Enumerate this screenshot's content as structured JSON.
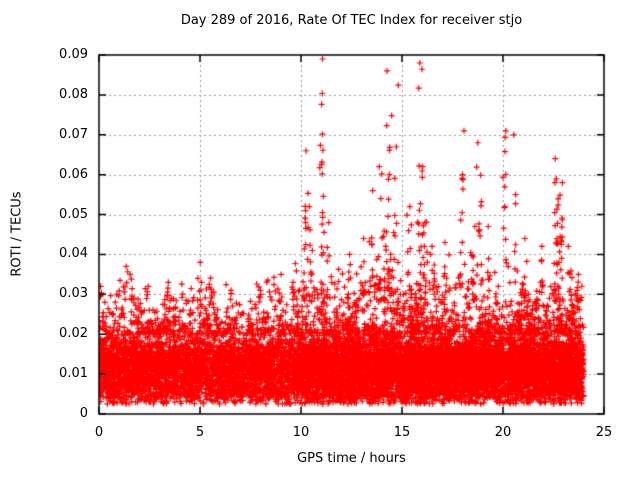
{
  "chart_data": {
    "type": "scatter",
    "title": "Day 289 of 2016, Rate Of TEC Index for receiver stjo",
    "xlabel": "GPS time / hours",
    "ylabel": "ROTI / TECUs",
    "xlim": [
      0,
      25
    ],
    "ylim": [
      0,
      0.09
    ],
    "xticks": [
      0,
      5,
      10,
      15,
      20,
      25
    ],
    "x_tick_labels": [
      "0",
      "5",
      "10",
      "15",
      "20",
      "25"
    ],
    "yticks": [
      0,
      0.01,
      0.02,
      0.03,
      0.04,
      0.05,
      0.06,
      0.07,
      0.08,
      0.09
    ],
    "y_tick_labels": [
      "0",
      "0.01",
      "0.02",
      "0.03",
      "0.04",
      "0.05",
      "0.06",
      "0.07",
      "0.08",
      "0.09"
    ],
    "grid": true,
    "legend": "none",
    "marker": "plus",
    "marker_color": "#ff0000",
    "grid_color": "#989898",
    "frame_color": "#000000",
    "background_color": "#ffffff",
    "data_extent_hours": [
      0,
      24
    ],
    "point_cloud_model": {
      "seed": 289,
      "n_points_uniform": 10500,
      "n_points_extra_10_24h": 2200,
      "t_range_hours": [
        0,
        24
      ],
      "core_center": 0.012,
      "core_sigma": 0.0042,
      "core_range": [
        0.004,
        0.024
      ],
      "low_tail_range": [
        0.0025,
        0.007
      ],
      "low_tail_prob": 0.08,
      "upper_tail_prob": 0.1,
      "band_top_by_hour": [
        0.031,
        0.037,
        0.029,
        0.031,
        0.03,
        0.037,
        0.029,
        0.03,
        0.031,
        0.034,
        0.035,
        0.036,
        0.034,
        0.037,
        0.039,
        0.038,
        0.036,
        0.038,
        0.04,
        0.036,
        0.034,
        0.033,
        0.036,
        0.034
      ]
    },
    "spikes": [
      {
        "t": 0.05,
        "ymax": 0.032,
        "n": 5,
        "spread": 0.05
      },
      {
        "t": 1.3,
        "ymax": 0.037,
        "n": 7,
        "spread": 0.08
      },
      {
        "t": 1.6,
        "ymax": 0.035,
        "n": 5,
        "spread": 0.06
      },
      {
        "t": 2.4,
        "ymax": 0.032,
        "n": 4,
        "spread": 0.06
      },
      {
        "t": 3.4,
        "ymax": 0.033,
        "n": 5,
        "spread": 0.06
      },
      {
        "t": 5.0,
        "ymax": 0.038,
        "n": 6,
        "spread": 0.06
      },
      {
        "t": 6.5,
        "ymax": 0.031,
        "n": 4,
        "spread": 0.06
      },
      {
        "t": 8.0,
        "ymax": 0.031,
        "n": 4,
        "spread": 0.06
      },
      {
        "t": 9.0,
        "ymax": 0.035,
        "n": 5,
        "spread": 0.06
      },
      {
        "t": 9.6,
        "ymax": 0.033,
        "n": 4,
        "spread": 0.05
      },
      {
        "t": 10.2,
        "ymax": 0.066,
        "n": 14,
        "spread": 0.08
      },
      {
        "t": 10.45,
        "ymax": 0.052,
        "n": 8,
        "spread": 0.06
      },
      {
        "t": 11.05,
        "ymax": 0.089,
        "n": 22,
        "spread": 0.05
      },
      {
        "t": 11.35,
        "ymax": 0.048,
        "n": 8,
        "spread": 0.06
      },
      {
        "t": 12.4,
        "ymax": 0.04,
        "n": 6,
        "spread": 0.06
      },
      {
        "t": 13.1,
        "ymax": 0.044,
        "n": 8,
        "spread": 0.07
      },
      {
        "t": 13.55,
        "ymax": 0.056,
        "n": 10,
        "spread": 0.07
      },
      {
        "t": 13.95,
        "ymax": 0.062,
        "n": 12,
        "spread": 0.08
      },
      {
        "t": 14.35,
        "ymax": 0.086,
        "n": 24,
        "spread": 0.12
      },
      {
        "t": 14.65,
        "ymax": 0.067,
        "n": 10,
        "spread": 0.07
      },
      {
        "t": 15.35,
        "ymax": 0.052,
        "n": 8,
        "spread": 0.06
      },
      {
        "t": 15.9,
        "ymax": 0.088,
        "n": 18,
        "spread": 0.07
      },
      {
        "t": 16.15,
        "ymax": 0.062,
        "n": 10,
        "spread": 0.06
      },
      {
        "t": 16.6,
        "ymax": 0.042,
        "n": 6,
        "spread": 0.06
      },
      {
        "t": 17.15,
        "ymax": 0.043,
        "n": 8,
        "spread": 0.06
      },
      {
        "t": 17.95,
        "ymax": 0.071,
        "n": 10,
        "spread": 0.06
      },
      {
        "t": 18.5,
        "ymax": 0.047,
        "n": 8,
        "spread": 0.07
      },
      {
        "t": 18.85,
        "ymax": 0.068,
        "n": 12,
        "spread": 0.07
      },
      {
        "t": 19.3,
        "ymax": 0.047,
        "n": 6,
        "spread": 0.06
      },
      {
        "t": 20.1,
        "ymax": 0.071,
        "n": 12,
        "spread": 0.06
      },
      {
        "t": 20.6,
        "ymax": 0.07,
        "n": 8,
        "spread": 0.05
      },
      {
        "t": 21.1,
        "ymax": 0.044,
        "n": 6,
        "spread": 0.06
      },
      {
        "t": 21.9,
        "ymax": 0.042,
        "n": 6,
        "spread": 0.06
      },
      {
        "t": 22.65,
        "ymax": 0.064,
        "n": 26,
        "spread": 0.1
      },
      {
        "t": 22.9,
        "ymax": 0.058,
        "n": 12,
        "spread": 0.06
      },
      {
        "t": 23.3,
        "ymax": 0.042,
        "n": 8,
        "spread": 0.06
      },
      {
        "t": 23.7,
        "ymax": 0.035,
        "n": 6,
        "spread": 0.05
      }
    ]
  }
}
